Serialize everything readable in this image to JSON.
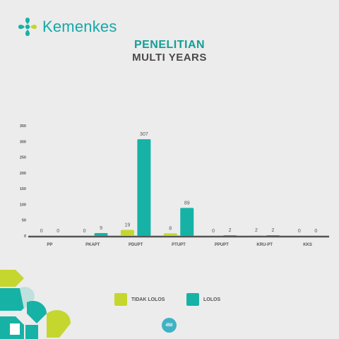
{
  "header": {
    "brand": "Kemenkes",
    "title_line1": "PENELITIAN",
    "title_line2": "MULTI YEARS"
  },
  "colors": {
    "tidak_lolos": "#c5d62f",
    "lolos": "#17b2a6",
    "brand": "#14a9a8"
  },
  "chart_data": {
    "type": "bar",
    "categories": [
      "PP",
      "PKAPT",
      "PDUPT",
      "PTUPT",
      "PPUPT",
      "KRU-PT",
      "KKS"
    ],
    "series": [
      {
        "name": "TIDAK LOLOS",
        "values": [
          0,
          0,
          19,
          8,
          0,
          2,
          0
        ],
        "labels": [
          "0",
          "0",
          "19",
          "8",
          "0",
          "2",
          "0"
        ]
      },
      {
        "name": "LOLOS",
        "values": [
          0,
          9,
          307,
          89,
          2,
          2,
          0
        ],
        "labels": [
          "0",
          "9",
          "307",
          "89",
          "2",
          "2",
          "0"
        ]
      }
    ],
    "yticks": [
      0,
      50,
      100,
      150,
      200,
      250,
      300,
      350
    ],
    "ylim": [
      0,
      350
    ],
    "legend": "bottom"
  },
  "footer": {
    "page_number": "450"
  }
}
